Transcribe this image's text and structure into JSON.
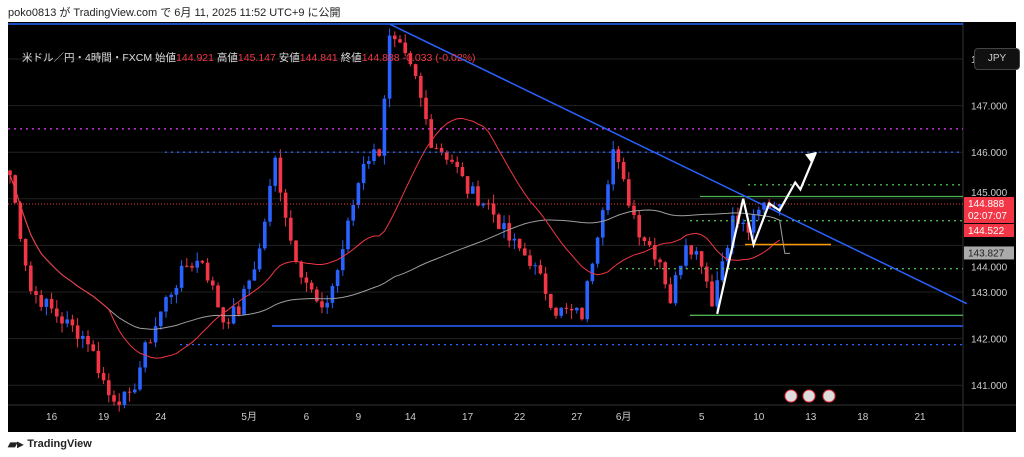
{
  "publish_line": "poko0813 が TradingView.com で 6月 11, 2025 11:52 UTC+9 に公開",
  "legend": {
    "symbol": "米ドル／円・4時間・FXCM",
    "open_label": "始値",
    "open": "144.921",
    "high_label": "高値",
    "high": "145.147",
    "low_label": "安値",
    "low": "144.841",
    "close_label": "終値",
    "close": "144.888",
    "change": "-0.033 (-0.02%)"
  },
  "currency_button": "JPY",
  "brand": "TradingView",
  "colors": {
    "up": "#2962ff",
    "down": "#f23645",
    "ma_fast": "#f23645",
    "ma_slow": "#9e9e9e",
    "trend": "#2962ff",
    "green": "#4caf50",
    "orange": "#ff9800",
    "magenta": "#e040fb"
  },
  "price_tags": [
    {
      "value": "144.888",
      "sub": "02:07:07",
      "price": 144.888,
      "kind": "last"
    },
    {
      "value": "144.522",
      "price": 144.522,
      "kind": "red"
    },
    {
      "value": "143.827",
      "price": 143.827,
      "kind": "gray"
    }
  ],
  "chart_data": {
    "type": "candlestick",
    "title": "USD/JPY 4H FXCM",
    "y_ticks": [
      "148.000",
      "147.000",
      "146.000",
      "145.000",
      "144.000",
      "143.000",
      "142.000",
      "141.000"
    ],
    "y_tick_values": [
      148,
      147,
      146,
      145,
      144,
      143,
      142,
      141
    ],
    "ylim": [
      140.6,
      148.8
    ],
    "x_ticks": [
      "16",
      "19",
      "24",
      "5月",
      "6",
      "9",
      "14",
      "17",
      "22",
      "27",
      "6月",
      "5",
      "10",
      "13",
      "18",
      "21"
    ],
    "x_tick_bars": [
      8,
      18,
      29,
      46,
      57,
      67,
      77,
      88,
      98,
      109,
      118,
      133,
      144,
      154,
      164,
      175
    ],
    "bar_count_range": [
      0,
      184
    ],
    "price_anchors": [
      [
        0,
        145.51
      ],
      [
        4,
        143.04
      ],
      [
        10,
        142.4
      ],
      [
        15,
        141.97
      ],
      [
        19,
        140.79
      ],
      [
        23,
        140.68
      ],
      [
        26,
        141.76
      ],
      [
        30,
        142.83
      ],
      [
        34,
        143.58
      ],
      [
        37,
        143.69
      ],
      [
        41,
        142.4
      ],
      [
        44,
        142.61
      ],
      [
        48,
        143.9
      ],
      [
        51,
        145.83
      ],
      [
        54,
        144.12
      ],
      [
        56,
        143.47
      ],
      [
        60,
        142.51
      ],
      [
        63,
        143.47
      ],
      [
        68,
        145.83
      ],
      [
        71,
        146.05
      ],
      [
        73,
        148.41
      ],
      [
        75,
        148.19
      ],
      [
        78,
        147.55
      ],
      [
        81,
        146.26
      ],
      [
        85,
        145.83
      ],
      [
        88,
        145.19
      ],
      [
        92,
        144.87
      ],
      [
        96,
        144.12
      ],
      [
        100,
        143.69
      ],
      [
        105,
        142.61
      ],
      [
        110,
        142.51
      ],
      [
        113,
        144.33
      ],
      [
        116,
        146.05
      ],
      [
        118,
        145.3
      ],
      [
        121,
        144.33
      ],
      [
        125,
        143.69
      ],
      [
        127,
        142.83
      ],
      [
        130,
        144.12
      ],
      [
        133,
        143.69
      ],
      [
        135,
        142.83
      ],
      [
        137,
        143.69
      ],
      [
        139,
        144.55
      ],
      [
        142,
        144.33
      ],
      [
        145,
        144.87
      ],
      [
        148,
        144.888
      ]
    ],
    "ma_periods": {
      "fast": 20,
      "slow": 75
    },
    "drawings": {
      "horizontal_solid_blue": [
        142.27
      ],
      "horizontal_dotted_blue": [
        146.0,
        141.87
      ],
      "horizontal_dotted_magenta": [
        146.5
      ],
      "horizontal_dotted_red": [
        144.888
      ],
      "horizontal_solid_green": [
        145.05,
        142.5
      ],
      "horizontal_dotted_green": [
        144.53,
        143.5,
        145.3
      ],
      "horizontal_solid_orange": [
        144.02
      ],
      "trendline_blue": [
        [
          73,
          148.75
        ],
        [
          184,
          142.75
        ]
      ],
      "projection_path": [
        [
          136,
          142.53
        ],
        [
          141,
          145.0
        ],
        [
          143,
          144.02
        ],
        [
          146,
          144.9
        ],
        [
          148,
          144.75
        ],
        [
          151,
          145.35
        ],
        [
          152,
          145.2
        ],
        [
          155,
          146.0
        ]
      ]
    }
  }
}
